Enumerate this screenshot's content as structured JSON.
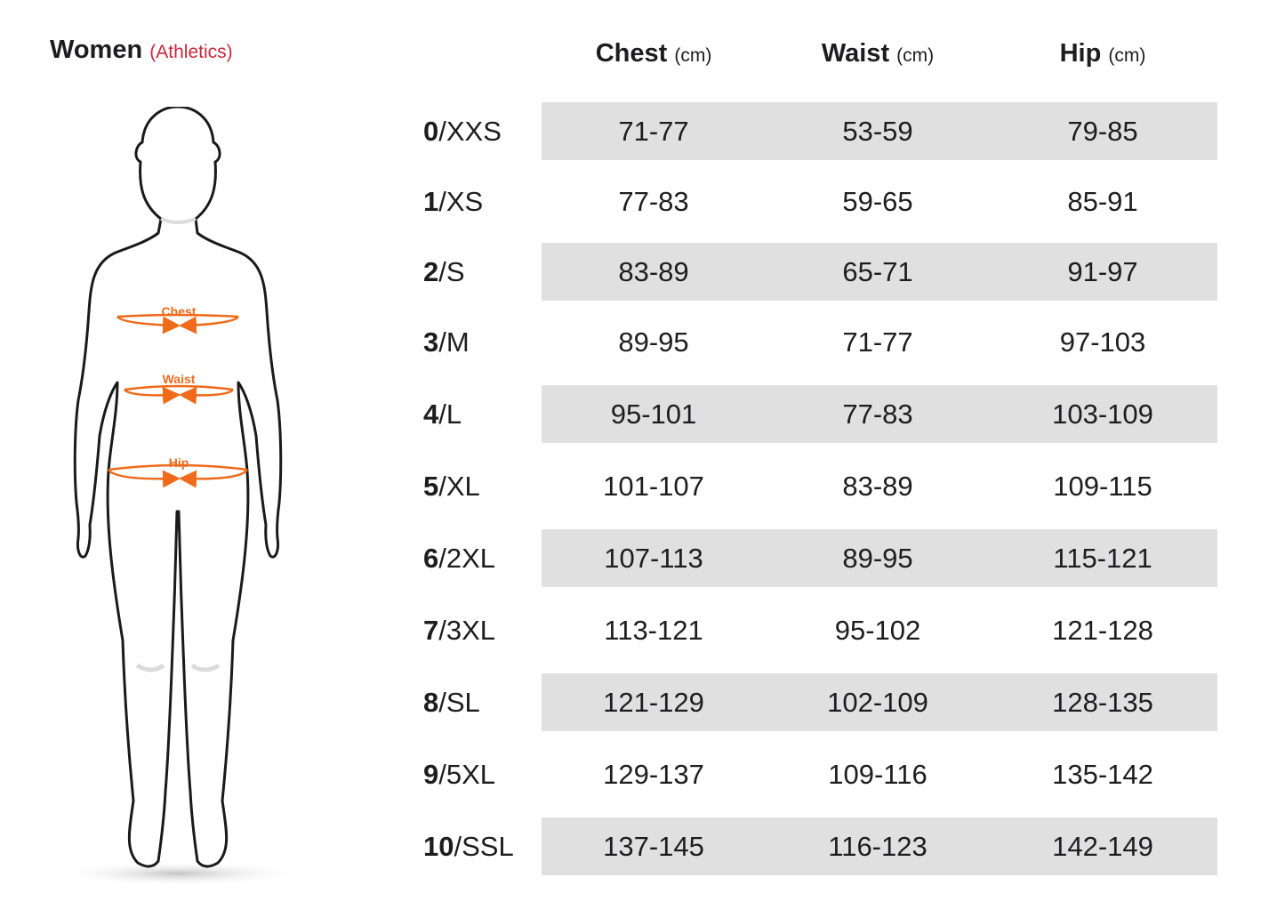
{
  "header": {
    "title": "Women",
    "subtitle": "(Athletics)"
  },
  "figure": {
    "labels": {
      "chest": "Chest",
      "waist": "Waist",
      "hip": "Hip"
    },
    "colors": {
      "outline": "#1a1a1a",
      "measure": "#ef6a1a"
    }
  },
  "table": {
    "columns": [
      {
        "name": "Chest",
        "unit": "(cm)"
      },
      {
        "name": "Waist",
        "unit": "(cm)"
      },
      {
        "name": "Hip",
        "unit": "(cm)"
      }
    ],
    "rows": [
      {
        "num": "0",
        "size": "/XXS",
        "chest": "71-77",
        "waist": "53-59",
        "hip": "79-85"
      },
      {
        "num": "1",
        "size": "/XS",
        "chest": "77-83",
        "waist": "59-65",
        "hip": "85-91"
      },
      {
        "num": "2",
        "size": "/S",
        "chest": "83-89",
        "waist": "65-71",
        "hip": "91-97"
      },
      {
        "num": "3",
        "size": "/M",
        "chest": "89-95",
        "waist": "71-77",
        "hip": "97-103"
      },
      {
        "num": "4",
        "size": "/L",
        "chest": "95-101",
        "waist": "77-83",
        "hip": "103-109"
      },
      {
        "num": "5",
        "size": "/XL",
        "chest": "101-107",
        "waist": "83-89",
        "hip": "109-115"
      },
      {
        "num": "6",
        "size": "/2XL",
        "chest": "107-113",
        "waist": "89-95",
        "hip": "115-121"
      },
      {
        "num": "7",
        "size": "/3XL",
        "chest": "113-121",
        "waist": "95-102",
        "hip": "121-128"
      },
      {
        "num": "8",
        "size": "/SL",
        "chest": "121-129",
        "waist": "102-109",
        "hip": "128-135"
      },
      {
        "num": "9",
        "size": "/5XL",
        "chest": "129-137",
        "waist": "109-116",
        "hip": "135-142"
      },
      {
        "num": "10",
        "size": "/SSL",
        "chest": "137-145",
        "waist": "116-123",
        "hip": "142-149"
      }
    ],
    "band_color": "#e0e0e0"
  }
}
